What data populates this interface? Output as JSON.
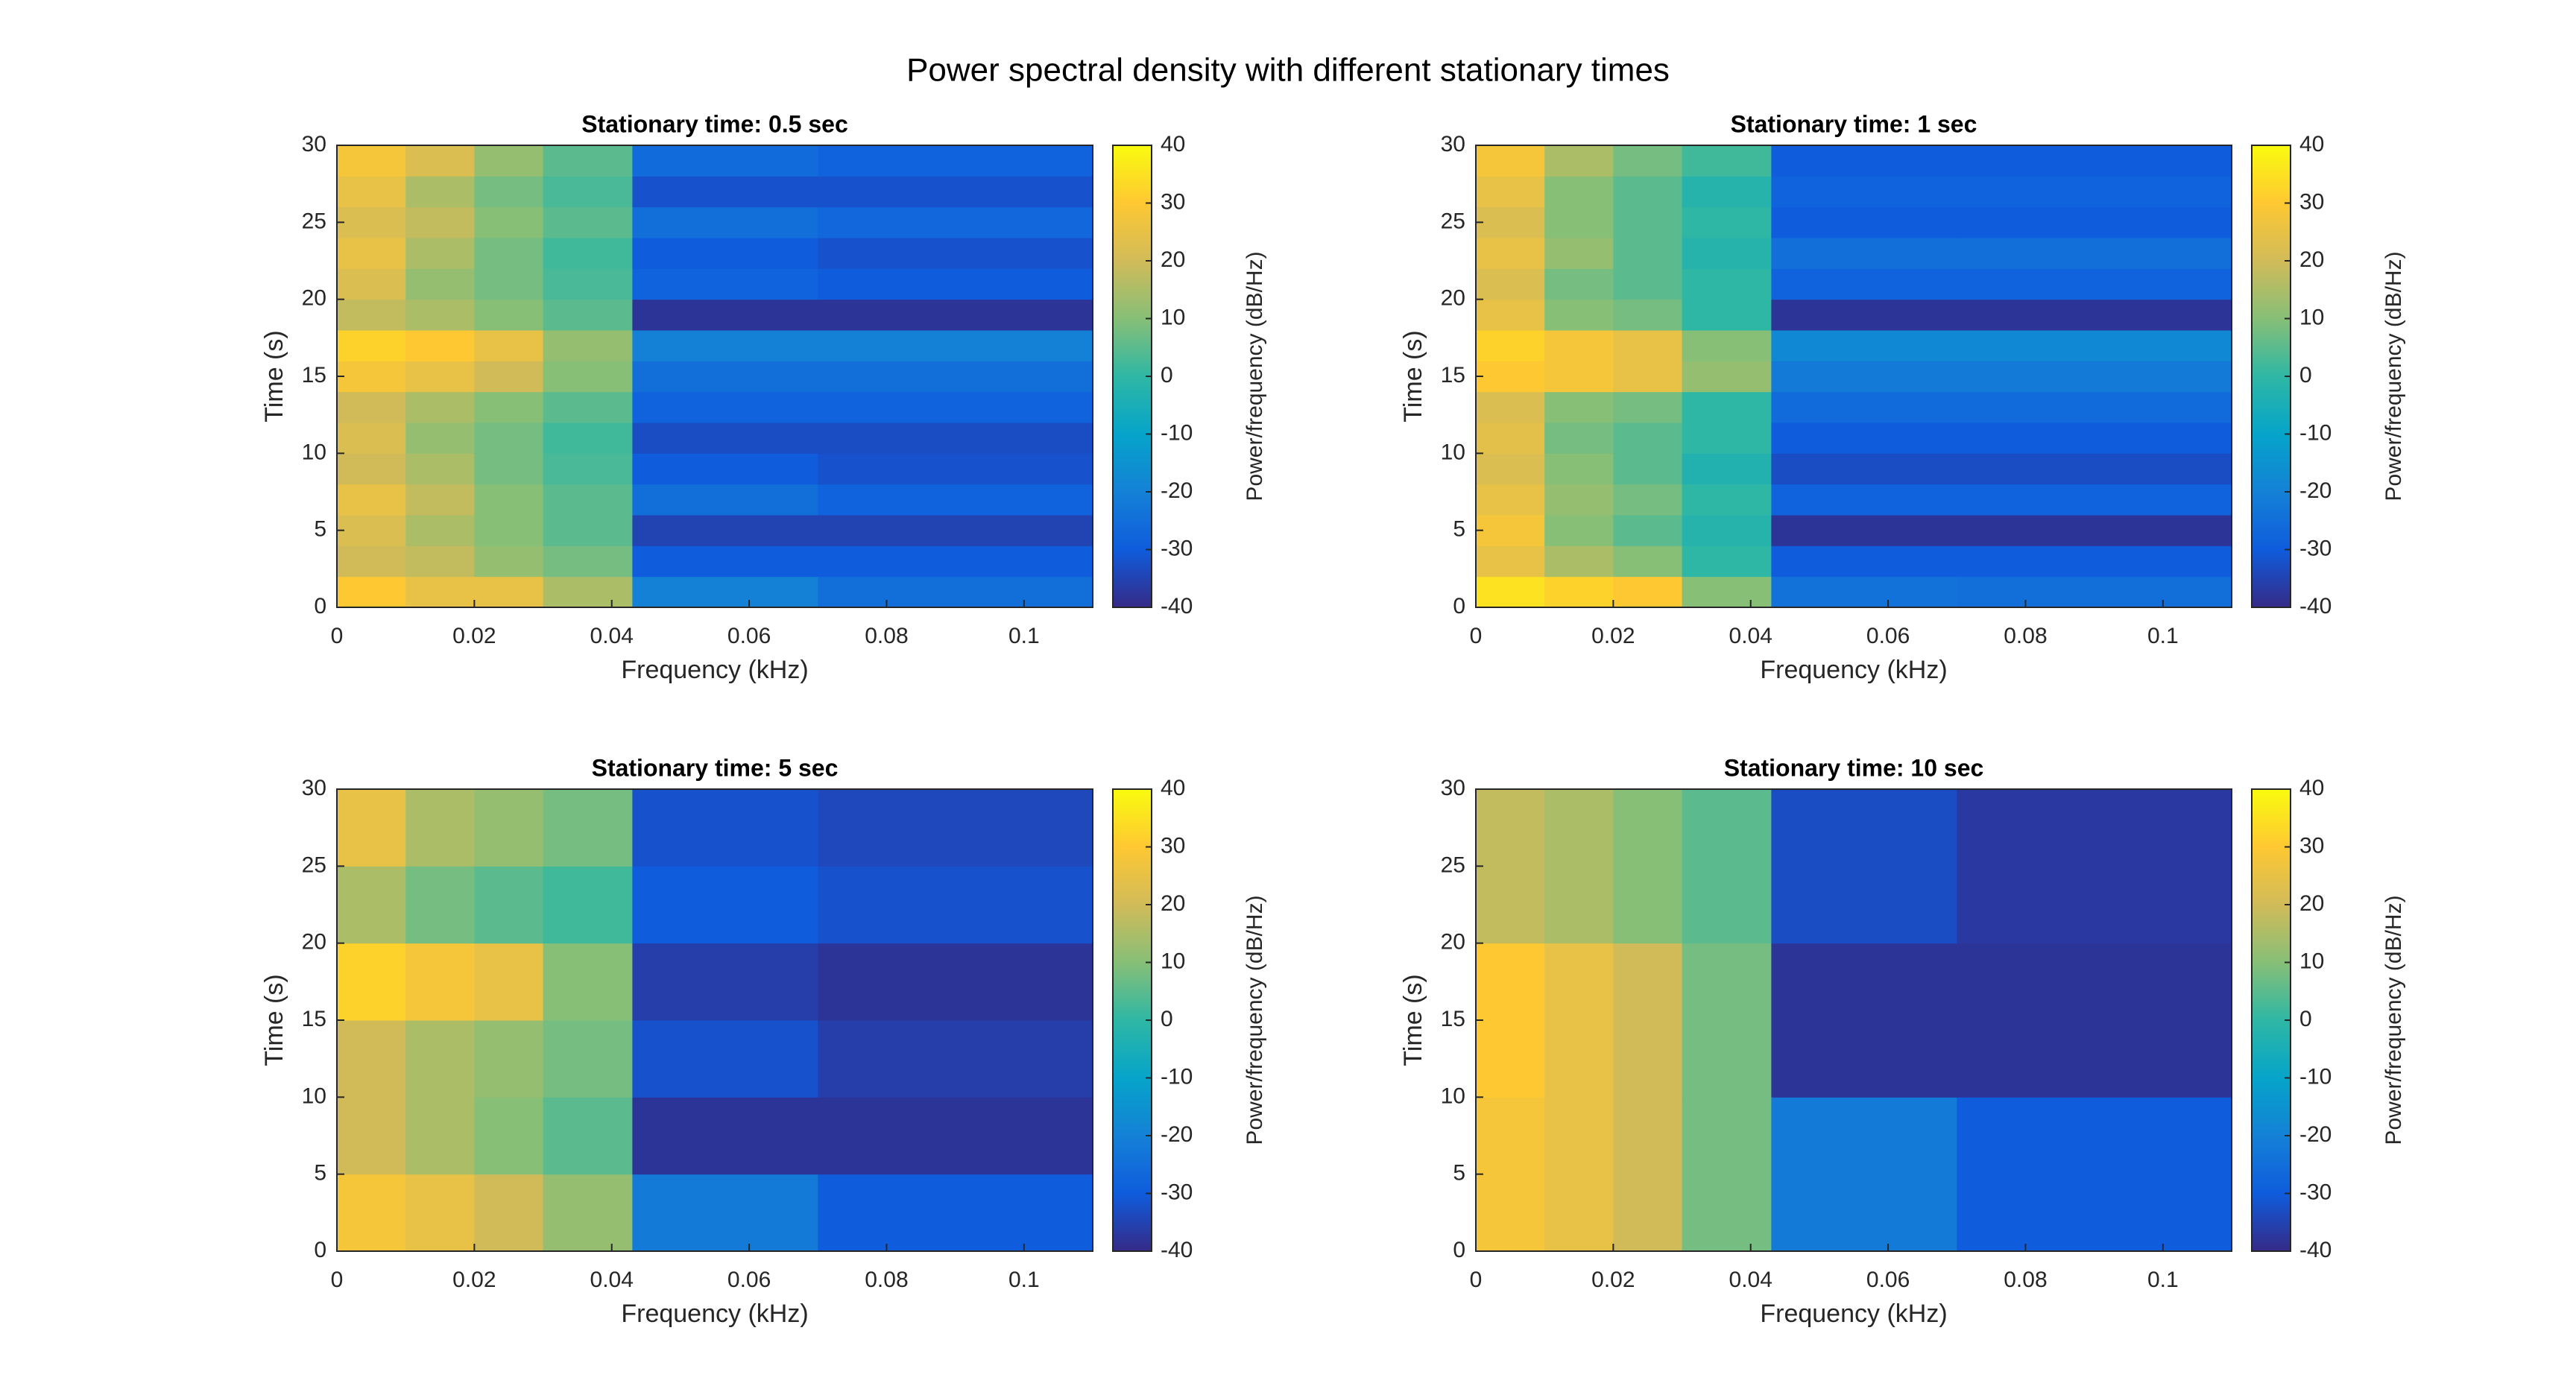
{
  "title": "Power spectral density with different stationary times",
  "chart_data": [
    {
      "type": "heatmap",
      "title": "Stationary time: 0.5 sec",
      "xlabel": "Frequency (kHz)",
      "ylabel": "Time (s)",
      "colorbar_label": "Power/frequency (dB/Hz)",
      "xlim": [
        0,
        0.11
      ],
      "ylim": [
        0,
        30
      ],
      "xticks": [
        0,
        0.02,
        0.04,
        0.06,
        0.08,
        0.1
      ],
      "yticks": [
        0,
        5,
        10,
        15,
        20,
        25,
        30
      ],
      "clim": [
        -40,
        40
      ],
      "cticks": [
        -40,
        -30,
        -20,
        -10,
        0,
        10,
        20,
        30,
        40
      ],
      "colormap": "parula",
      "x_edges": [
        0,
        0.01,
        0.02,
        0.03,
        0.043,
        0.07,
        0.11
      ],
      "y_edges": [
        0,
        2,
        4,
        6,
        8,
        10,
        12,
        14,
        16,
        18,
        20,
        22,
        24,
        26,
        28,
        30
      ],
      "z": [
        [
          30,
          25,
          25,
          15,
          -20,
          -25
        ],
        [
          20,
          18,
          12,
          8,
          -30,
          -30
        ],
        [
          22,
          15,
          10,
          5,
          -35,
          -35
        ],
        [
          25,
          18,
          10,
          5,
          -25,
          -28
        ],
        [
          20,
          15,
          8,
          3,
          -30,
          -32
        ],
        [
          22,
          12,
          8,
          2,
          -33,
          -33
        ],
        [
          20,
          15,
          10,
          5,
          -28,
          -28
        ],
        [
          28,
          25,
          20,
          10,
          -25,
          -25
        ],
        [
          32,
          30,
          25,
          12,
          -20,
          -20
        ],
        [
          18,
          15,
          10,
          5,
          -38,
          -38
        ],
        [
          22,
          12,
          8,
          3,
          -28,
          -30
        ],
        [
          25,
          15,
          8,
          2,
          -30,
          -32
        ],
        [
          22,
          18,
          10,
          5,
          -25,
          -27
        ],
        [
          25,
          15,
          8,
          3,
          -32,
          -32
        ],
        [
          28,
          22,
          12,
          5,
          -26,
          -28
        ]
      ]
    },
    {
      "type": "heatmap",
      "title": "Stationary time: 1 sec",
      "xlabel": "Frequency (kHz)",
      "ylabel": "Time (s)",
      "colorbar_label": "Power/frequency (dB/Hz)",
      "xlim": [
        0,
        0.11
      ],
      "ylim": [
        0,
        30
      ],
      "xticks": [
        0,
        0.02,
        0.04,
        0.06,
        0.08,
        0.1
      ],
      "yticks": [
        0,
        5,
        10,
        15,
        20,
        25,
        30
      ],
      "clim": [
        -40,
        40
      ],
      "cticks": [
        -40,
        -30,
        -20,
        -10,
        0,
        10,
        20,
        30,
        40
      ],
      "colormap": "parula",
      "x_edges": [
        0,
        0.01,
        0.02,
        0.03,
        0.043,
        0.07,
        0.11
      ],
      "y_edges": [
        0,
        2,
        4,
        6,
        8,
        10,
        12,
        14,
        16,
        18,
        20,
        22,
        24,
        26,
        28,
        30
      ],
      "z": [
        [
          35,
          32,
          30,
          10,
          -24,
          -25
        ],
        [
          25,
          15,
          10,
          0,
          -30,
          -30
        ],
        [
          28,
          10,
          5,
          -2,
          -38,
          -38
        ],
        [
          25,
          12,
          8,
          0,
          -28,
          -28
        ],
        [
          22,
          10,
          5,
          -3,
          -33,
          -33
        ],
        [
          24,
          8,
          5,
          0,
          -30,
          -30
        ],
        [
          22,
          10,
          8,
          0,
          -26,
          -26
        ],
        [
          30,
          28,
          25,
          12,
          -22,
          -22
        ],
        [
          32,
          28,
          25,
          10,
          -18,
          -18
        ],
        [
          25,
          10,
          8,
          0,
          -38,
          -38
        ],
        [
          22,
          8,
          5,
          0,
          -28,
          -28
        ],
        [
          25,
          12,
          5,
          -2,
          -25,
          -25
        ],
        [
          22,
          10,
          5,
          0,
          -30,
          -30
        ],
        [
          25,
          10,
          5,
          -2,
          -28,
          -28
        ],
        [
          28,
          15,
          8,
          2,
          -30,
          -30
        ]
      ]
    },
    {
      "type": "heatmap",
      "title": "Stationary time: 5 sec",
      "xlabel": "Frequency (kHz)",
      "ylabel": "Time (s)",
      "colorbar_label": "Power/frequency (dB/Hz)",
      "xlim": [
        0,
        0.11
      ],
      "ylim": [
        0,
        30
      ],
      "xticks": [
        0,
        0.02,
        0.04,
        0.06,
        0.08,
        0.1
      ],
      "yticks": [
        0,
        5,
        10,
        15,
        20,
        25,
        30
      ],
      "clim": [
        -40,
        40
      ],
      "cticks": [
        -40,
        -30,
        -20,
        -10,
        0,
        10,
        20,
        30,
        40
      ],
      "colormap": "parula",
      "x_edges": [
        0,
        0.01,
        0.02,
        0.03,
        0.043,
        0.07,
        0.11
      ],
      "y_edges": [
        0,
        5,
        10,
        15,
        20,
        25,
        30
      ],
      "z": [
        [
          28,
          25,
          20,
          12,
          -22,
          -30
        ],
        [
          20,
          15,
          10,
          5,
          -38,
          -38
        ],
        [
          20,
          15,
          12,
          8,
          -32,
          -36
        ],
        [
          32,
          28,
          25,
          10,
          -36,
          -38
        ],
        [
          15,
          8,
          5,
          2,
          -30,
          -32
        ],
        [
          25,
          15,
          12,
          8,
          -32,
          -34
        ]
      ]
    },
    {
      "type": "heatmap",
      "title": "Stationary time: 10 sec",
      "xlabel": "Frequency (kHz)",
      "ylabel": "Time (s)",
      "colorbar_label": "Power/frequency (dB/Hz)",
      "xlim": [
        0,
        0.11
      ],
      "ylim": [
        0,
        30
      ],
      "xticks": [
        0,
        0.02,
        0.04,
        0.06,
        0.08,
        0.1
      ],
      "yticks": [
        0,
        5,
        10,
        15,
        20,
        25,
        30
      ],
      "clim": [
        -40,
        40
      ],
      "cticks": [
        -40,
        -30,
        -20,
        -10,
        0,
        10,
        20,
        30,
        40
      ],
      "colormap": "parula",
      "x_edges": [
        0,
        0.01,
        0.02,
        0.03,
        0.043,
        0.07,
        0.11
      ],
      "y_edges": [
        0,
        10,
        20,
        30
      ],
      "z": [
        [
          28,
          25,
          20,
          8,
          -22,
          -30
        ],
        [
          30,
          25,
          20,
          8,
          -38,
          -38
        ],
        [
          18,
          15,
          10,
          5,
          -33,
          -37
        ]
      ]
    }
  ]
}
